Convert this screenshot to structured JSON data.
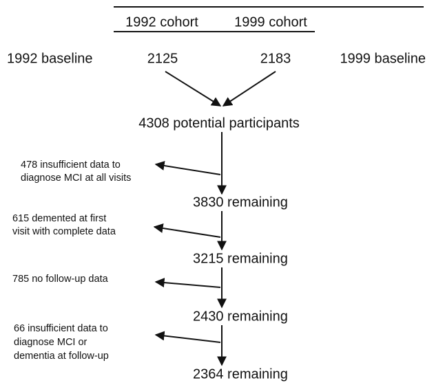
{
  "header": {
    "cohorts": [
      "1992 cohort",
      "1999 cohort"
    ]
  },
  "baselines": [
    {
      "label": "1992 baseline",
      "count": "2125"
    },
    {
      "label": "1999 baseline",
      "count": "2183"
    }
  ],
  "nodes": [
    {
      "label": "4308 potential participants"
    },
    {
      "label": "3830 remaining"
    },
    {
      "label": "3215 remaining"
    },
    {
      "label": "2430 remaining"
    },
    {
      "label": "2364 remaining"
    }
  ],
  "exclusions": [
    {
      "lines": [
        "478 insufficient data to",
        "diagnose MCI at all visits"
      ]
    },
    {
      "lines": [
        "615 demented at first",
        "visit with complete data"
      ]
    },
    {
      "lines": [
        "785 no follow-up data"
      ]
    },
    {
      "lines": [
        "66 insufficient data to",
        "diagnose MCI or",
        "dementia at follow-up"
      ]
    }
  ]
}
